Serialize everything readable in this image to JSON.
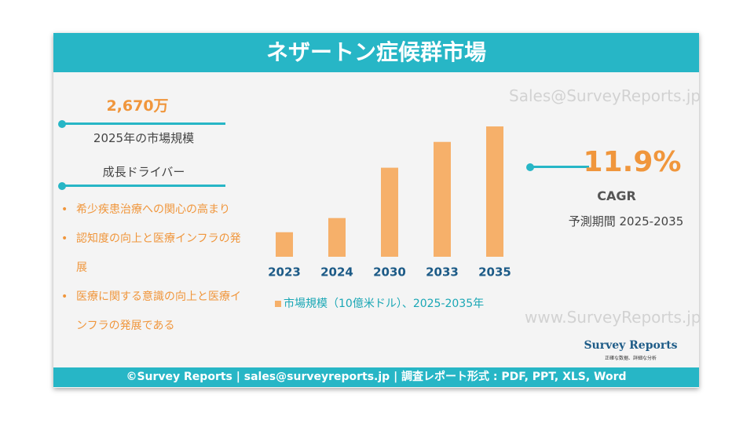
{
  "header": {
    "title": "ネザートン症候群市場"
  },
  "left": {
    "market_value": "2,670万",
    "market_label": "2025年の市場規模",
    "drivers_title": "成長ドライバー",
    "drivers": [
      "希少疾患治療への関心の高まり",
      "認知度の向上と医療インフラの発展",
      "医療に関する意識の向上と医療インフラの発展である"
    ]
  },
  "chart_data": {
    "type": "bar",
    "categories": [
      "2023",
      "2024",
      "2030",
      "2033",
      "2035"
    ],
    "series": [
      {
        "name": "市場規模（10億米ドル）、2025-2035年",
        "color": "#f6b06a",
        "values": [
          1.9,
          3.0,
          6.9,
          8.9,
          10.1
        ]
      }
    ]
  },
  "right": {
    "cagr": "11.9%",
    "cagr_label": "CAGR",
    "period": "予測期間 2025-2035"
  },
  "watermarks": [
    "Sales@SurveyReports.jp",
    "www.SurveyReports.jp"
  ],
  "logo": {
    "name": "Survey Reports",
    "tagline": "正確な数据、詳細な分析"
  },
  "footer": {
    "text": "©Survey Reports | sales@surveyreports.jp |  調査レポート形式 : PDF, PPT, XLS, Word"
  }
}
